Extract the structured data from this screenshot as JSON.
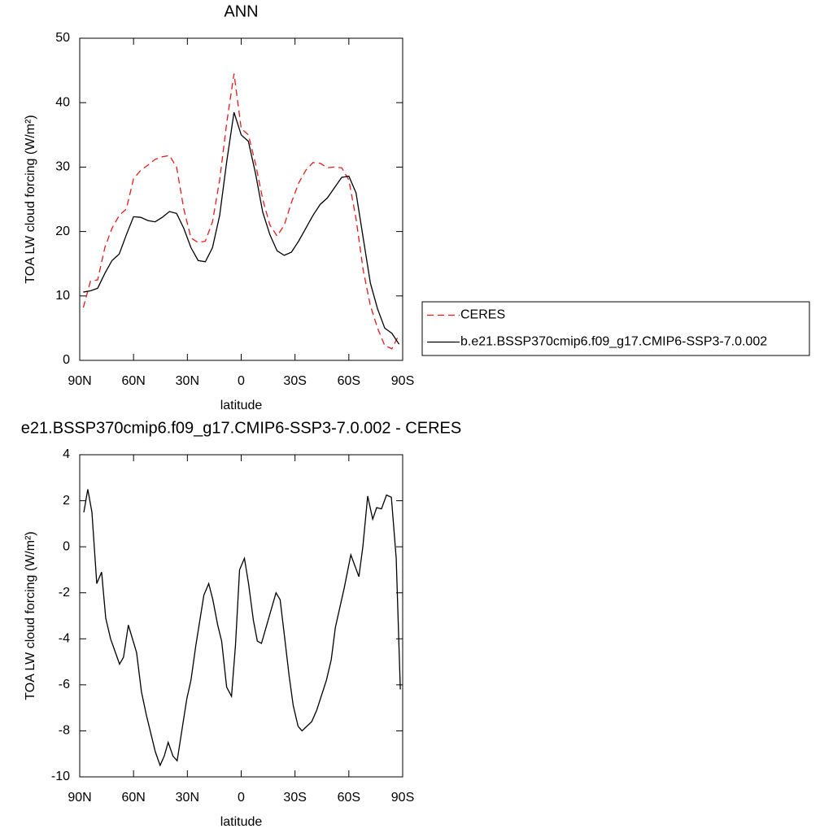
{
  "chart_data": [
    {
      "type": "line",
      "title": "ANN",
      "x_label": "latitude",
      "y_label": "TOA LW cloud forcing (W/m²)",
      "x": [
        88,
        84,
        80,
        76,
        72,
        68,
        64,
        60,
        56,
        52,
        48,
        44,
        40,
        36,
        32,
        28,
        24,
        20,
        16,
        12,
        8,
        4,
        0,
        -4,
        -8,
        -12,
        -16,
        -20,
        -24,
        -28,
        -32,
        -36,
        -40,
        -44,
        -48,
        -52,
        -56,
        -60,
        -64,
        -68,
        -72,
        -76,
        -80,
        -84,
        -88
      ],
      "series": [
        {
          "name": "CERES",
          "color": "#e41a1c",
          "line_style": "dashed",
          "values": [
            8.2,
            12.3,
            12.5,
            17.5,
            20.5,
            22.5,
            23.5,
            28.2,
            29.5,
            30.3,
            31.2,
            31.6,
            31.8,
            30,
            23.5,
            19,
            18.3,
            18.5,
            21.5,
            28,
            37,
            44.5,
            36,
            35,
            30.5,
            25,
            21,
            19.3,
            21,
            24.5,
            27.5,
            29.5,
            30.7,
            30.6,
            29.9,
            30,
            29.9,
            28,
            22,
            14,
            8.5,
            5,
            2.3,
            1.8,
            4
          ]
        },
        {
          "name": "b.e21.BSSP370cmip6.f09_g17.CMIP6-SSP3-7.0.002",
          "color": "#000000",
          "line_style": "solid",
          "values": [
            10.6,
            10.8,
            11.2,
            13.5,
            15.5,
            16.5,
            19.5,
            22.3,
            22.2,
            21.7,
            21.5,
            22.2,
            23.1,
            22.8,
            20.5,
            17.5,
            15.5,
            15.3,
            17.5,
            22.5,
            31,
            38.5,
            35,
            34,
            29,
            23,
            19.5,
            17,
            16.3,
            16.8,
            18.5,
            20.5,
            22.5,
            24.2,
            25.2,
            26.8,
            28.4,
            28.6,
            26,
            19,
            12,
            8,
            5,
            4.2,
            2.5
          ]
        }
      ],
      "xlim": [
        90,
        -90
      ],
      "xticks": [
        {
          "value": 90,
          "label": "90N"
        },
        {
          "value": 60,
          "label": "60N"
        },
        {
          "value": 30,
          "label": "30N"
        },
        0,
        {
          "value": -30,
          "label": "30S"
        },
        {
          "value": -60,
          "label": "60S"
        },
        {
          "value": -90,
          "label": "90S"
        }
      ],
      "ylim": [
        0,
        50
      ],
      "yticks": [
        0,
        10,
        20,
        30,
        40,
        50
      ],
      "legend": "right"
    },
    {
      "type": "line",
      "title": "e21.BSSP370cmip6.f09_g17.CMIP6-SSP3-7.0.002 - CERES",
      "x_label": "latitude",
      "y_label": "TOA LW cloud forcing (W/m²)",
      "x": [
        87.7,
        85.5,
        83.2,
        80.5,
        77.8,
        75.5,
        72.8,
        67.8,
        65.6,
        62.9,
        58.3,
        55.6,
        52.9,
        47.9,
        45.2,
        42.9,
        40.7,
        38.0,
        35.7,
        30.3,
        28.0,
        25.3,
        20.8,
        18.1,
        15.8,
        13.1,
        10.9,
        8.1,
        5.4,
        3.2,
        0.9,
        -1.8,
        -4.1,
        -6.8,
        -9.0,
        -11.3,
        -19.4,
        -21.7,
        -24.0,
        -26.7,
        -29.0,
        -31.7,
        -33.9,
        -36.6,
        -39.3,
        -42.1,
        -47.5,
        -50.2,
        -52.5,
        -57.4,
        -61.1,
        -65.6,
        -67.8,
        -70.5,
        -73.3,
        -75.5,
        -78.2,
        -81.0,
        -83.7,
        -86.4,
        -88.7
      ],
      "series": [
        {
          "color": "#000000",
          "line_style": "solid",
          "values": [
            1.5,
            2.5,
            1.5,
            -1.6,
            -1.1,
            -3.1,
            -4,
            -5.1,
            -4.8,
            -3.4,
            -4.6,
            -6.3,
            -7.3,
            -8.9,
            -9.5,
            -9.1,
            -8.5,
            -9.1,
            -9.3,
            -6.6,
            -5.8,
            -4.3,
            -2.1,
            -1.6,
            -2.3,
            -3.4,
            -4.1,
            -6.1,
            -6.5,
            -4.3,
            -1,
            -0.5,
            -1.6,
            -3.2,
            -4.1,
            -4.2,
            -2,
            -2.3,
            -3.8,
            -5.6,
            -6.9,
            -7.8,
            -8,
            -7.8,
            -7.6,
            -7.1,
            -5.8,
            -4.9,
            -3.5,
            -1.8,
            -0.35,
            -1.3,
            0,
            2.2,
            1.2,
            1.7,
            1.65,
            2.25,
            2.15,
            -0.5,
            -6.2
          ]
        }
      ],
      "xlim": [
        90,
        -90
      ],
      "xticks": [
        {
          "value": 90,
          "label": "90N"
        },
        {
          "value": 60,
          "label": "60N"
        },
        {
          "value": 30,
          "label": "30N"
        },
        0,
        {
          "value": -30,
          "label": "30S"
        },
        {
          "value": -60,
          "label": "60S"
        },
        {
          "value": -90,
          "label": "90S"
        }
      ],
      "ylim": [
        -10,
        4
      ],
      "yticks": [
        -10,
        -8,
        -6,
        -4,
        -2,
        0,
        2,
        4
      ]
    }
  ]
}
